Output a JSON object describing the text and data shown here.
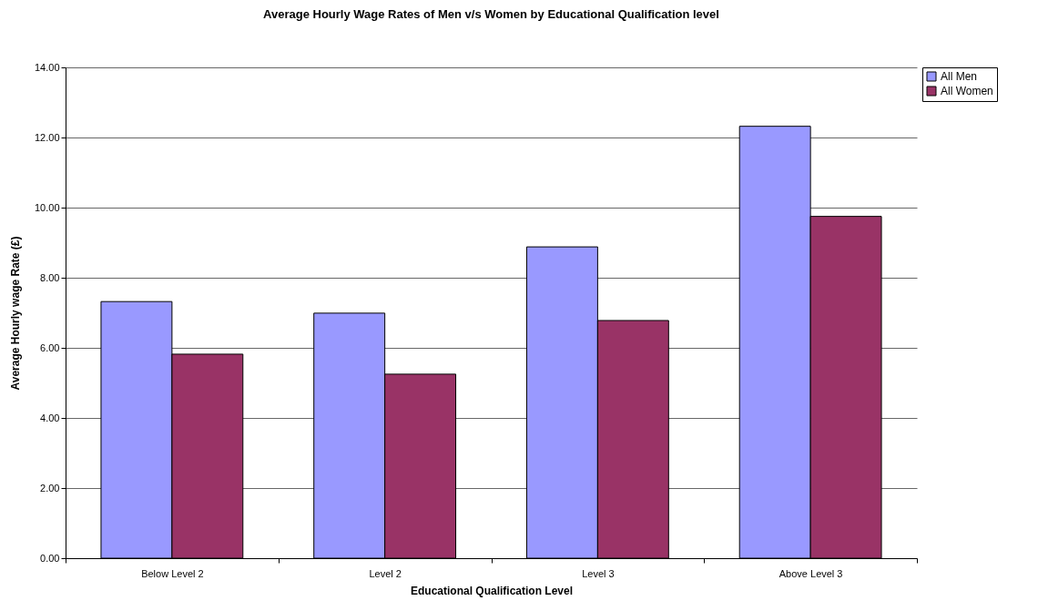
{
  "chart_data": {
    "type": "bar",
    "title": "Average Hourly Wage Rates of Men v/s Women by Educational Qualification level",
    "xlabel": "Educational Qualification Level",
    "ylabel": "Average Hourly wage Rate (£)",
    "categories": [
      "Below Level 2",
      "Level 2",
      "Level 3",
      "Above Level 3"
    ],
    "series": [
      {
        "name": "All Men",
        "color": "#9999ff",
        "values": [
          7.32,
          6.99,
          8.88,
          12.32
        ]
      },
      {
        "name": "All Women",
        "color": "#993366",
        "values": [
          5.82,
          5.25,
          6.78,
          9.75
        ]
      }
    ],
    "ylim": [
      0,
      14
    ],
    "yticks": [
      {
        "value": 0,
        "label": "0.00"
      },
      {
        "value": 2,
        "label": "2.00"
      },
      {
        "value": 4,
        "label": "4.00"
      },
      {
        "value": 6,
        "label": "6.00"
      },
      {
        "value": 8,
        "label": "8.00"
      },
      {
        "value": 10,
        "label": "10.00"
      },
      {
        "value": 12,
        "label": "12.00"
      },
      {
        "value": 14,
        "label": "14.00"
      }
    ],
    "grid": "y",
    "legend": "right"
  }
}
